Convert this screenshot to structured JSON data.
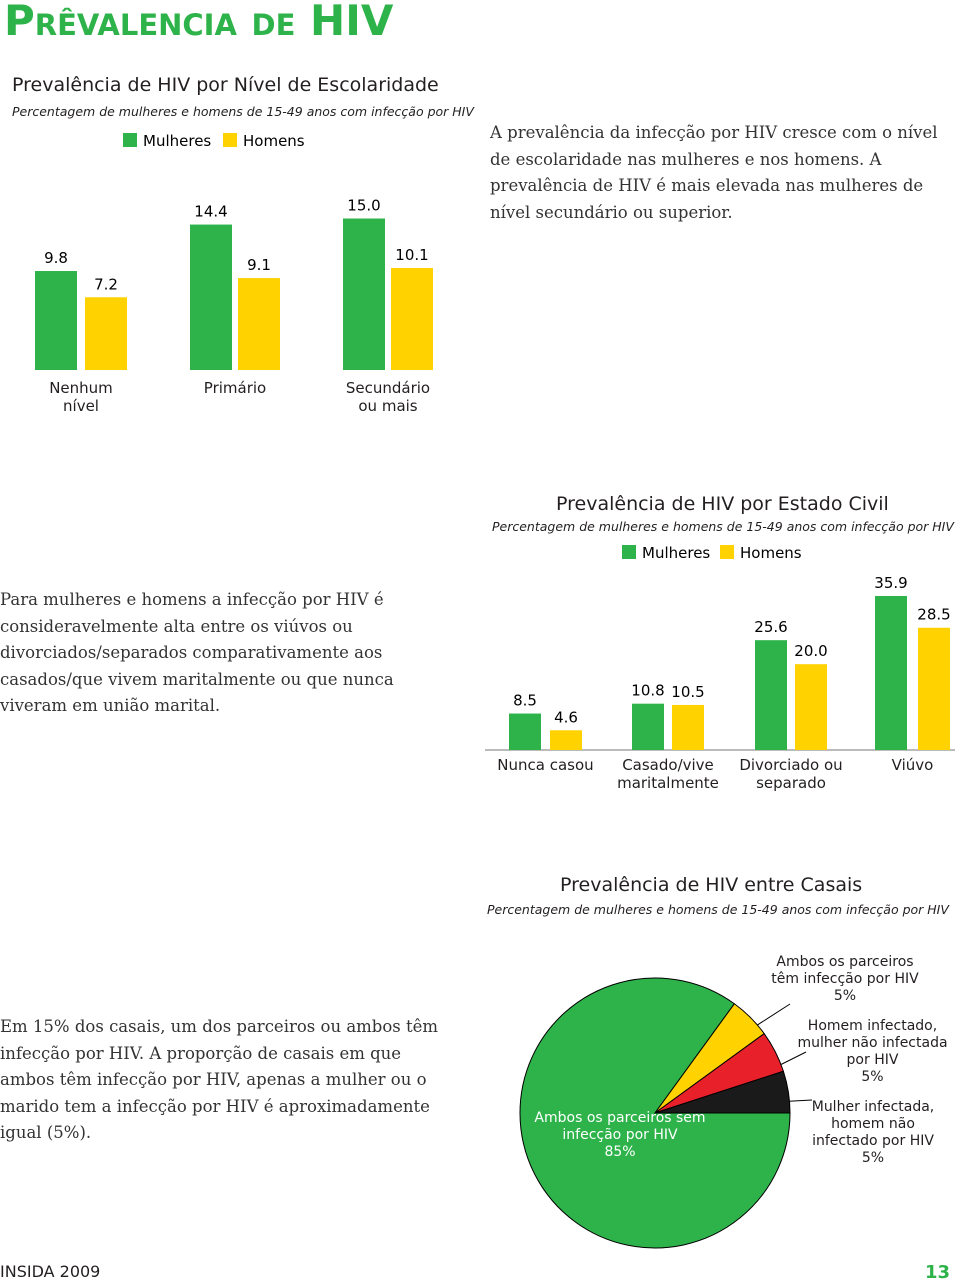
{
  "title": "Prêvalencia de HIV",
  "paragraphs": [
    "A prevalência da infecção por HIV cresce com o nível de escolaridade nas mulheres e nos homens. A prevalência de HIV é mais elevada nas mulheres de nível secundário ou superior.",
    "Para mulheres e homens a infecção por HIV é consideravelmente alta entre os viúvos ou divorciados/separados comparativamente aos casados/que vivem maritalmente ou que nunca viveram em união marital.",
    "Em 15% dos casais, um dos parceiros ou ambos têm infecção por HIV. A proporção de casais em que ambos têm infecção por HIV, apenas a mulher ou o marido tem a infecção por HIV é aproximadamente igual (5%)."
  ],
  "chart_data": [
    {
      "type": "bar",
      "title": "Prevalência de HIV por Nível de Escolaridade",
      "subtitle": "Percentagem de mulheres e homens de 15-49 anos com infecção por HIV",
      "categories": [
        "Nenhum nível",
        "Primário",
        "Secundário ou mais"
      ],
      "series": [
        {
          "name": "Mulheres",
          "color": "#2db34a",
          "values": [
            9.8,
            14.4,
            15.0
          ],
          "value_labels": [
            "9.8",
            "14.4",
            "15.0"
          ]
        },
        {
          "name": "Homens",
          "color": "#ffd200",
          "values": [
            7.2,
            9.1,
            10.1
          ]
        }
      ]
    },
    {
      "type": "bar",
      "title": "Prevalência de HIV por Estado Civil",
      "subtitle": "Percentagem de mulheres e homens de 15-49 anos com infecção por HIV",
      "categories": [
        "Nunca casou",
        "Casado/vive maritalmente",
        "Divorciado ou separado",
        "Viúvo"
      ],
      "series": [
        {
          "name": "Mulheres",
          "color": "#2db34a",
          "values": [
            8.5,
            10.8,
            25.6,
            35.9
          ]
        },
        {
          "name": "Homens",
          "color": "#ffd200",
          "values": [
            4.6,
            10.5,
            20.0,
            28.5
          ],
          "value_labels": [
            "4.6",
            "10.5",
            "20.0",
            "28.5"
          ]
        }
      ]
    },
    {
      "type": "pie",
      "title": "Prevalência de HIV entre Casais",
      "subtitle": "Percentagem de mulheres e homens de 15-49 anos com infecção por HIV",
      "categories": [
        "Ambos os parceiros sem infecção por HIV",
        "Ambos os parceiros têm infecção por HIV",
        "Homem infectado, mulher não infectada por HIV",
        "Mulher infectada, homem não infectado por HIV"
      ],
      "values": [
        85,
        5,
        5,
        5
      ],
      "value_labels": [
        "85%",
        "5%",
        "5%",
        "5%"
      ],
      "colors": [
        "#2db34a",
        "#ffd200",
        "#e8202a",
        "#1a1a1a"
      ]
    }
  ],
  "footer": {
    "left": "INSIDA 2009",
    "page": "13"
  }
}
